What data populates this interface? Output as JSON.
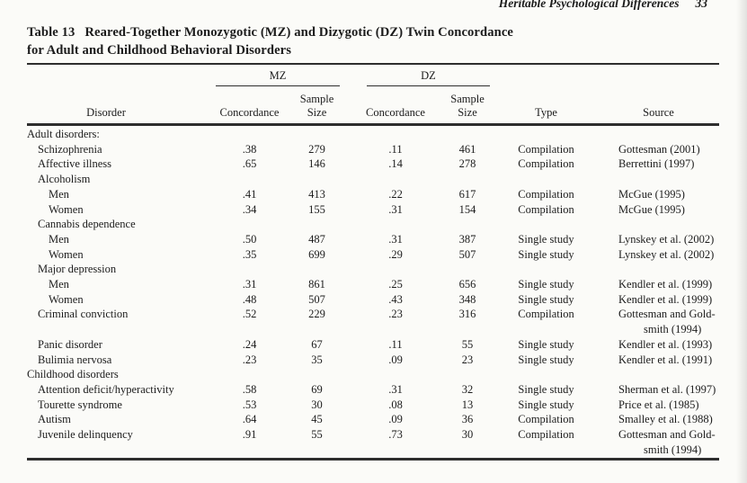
{
  "page": {
    "running_head": "Heritable Psychological Differences",
    "page_number": "33"
  },
  "colors": {
    "ink": "#1c1c1c",
    "paper": "#fbfbf8",
    "rule": "#2e2e2e"
  },
  "table": {
    "label": "Table 13",
    "title_line1": "Reared-Together Monozygotic (MZ) and Dizygotic (DZ) Twin Concordance",
    "title_line2": "for Adult and Childhood Behavioral Disorders",
    "spanners": {
      "mz": "MZ",
      "dz": "DZ"
    },
    "headers": {
      "disorder": "Disorder",
      "concordance": "Concordance",
      "sample_size": "Sample\nSize",
      "type": "Type",
      "source": "Source"
    },
    "rows": [
      {
        "indent": 0,
        "disorder": "Adult disorders:",
        "mz_concordance": "",
        "mz_sample": "",
        "dz_concordance": "",
        "dz_sample": "",
        "type": "",
        "source": []
      },
      {
        "indent": 1,
        "disorder": "Schizophrenia",
        "mz_concordance": ".38",
        "mz_sample": "279",
        "dz_concordance": ".11",
        "dz_sample": "461",
        "type": "Compilation",
        "source": [
          "Gottesman (2001)"
        ]
      },
      {
        "indent": 1,
        "disorder": "Affective illness",
        "mz_concordance": ".65",
        "mz_sample": "146",
        "dz_concordance": ".14",
        "dz_sample": "278",
        "type": "Compilation",
        "source": [
          "Berrettini (1997)"
        ]
      },
      {
        "indent": 1,
        "disorder": "Alcoholism",
        "mz_concordance": "",
        "mz_sample": "",
        "dz_concordance": "",
        "dz_sample": "",
        "type": "",
        "source": []
      },
      {
        "indent": 2,
        "disorder": "Men",
        "mz_concordance": ".41",
        "mz_sample": "413",
        "dz_concordance": ".22",
        "dz_sample": "617",
        "type": "Compilation",
        "source": [
          "McGue (1995)"
        ]
      },
      {
        "indent": 2,
        "disorder": "Women",
        "mz_concordance": ".34",
        "mz_sample": "155",
        "dz_concordance": ".31",
        "dz_sample": "154",
        "type": "Compilation",
        "source": [
          "McGue (1995)"
        ]
      },
      {
        "indent": 1,
        "disorder": "Cannabis dependence",
        "mz_concordance": "",
        "mz_sample": "",
        "dz_concordance": "",
        "dz_sample": "",
        "type": "",
        "source": []
      },
      {
        "indent": 2,
        "disorder": "Men",
        "mz_concordance": ".50",
        "mz_sample": "487",
        "dz_concordance": ".31",
        "dz_sample": "387",
        "type": "Single study",
        "source": [
          "Lynskey et al. (2002)"
        ]
      },
      {
        "indent": 2,
        "disorder": "Women",
        "mz_concordance": ".35",
        "mz_sample": "699",
        "dz_concordance": ".29",
        "dz_sample": "507",
        "type": "Single study",
        "source": [
          "Lynskey et al. (2002)"
        ]
      },
      {
        "indent": 1,
        "disorder": "Major depression",
        "mz_concordance": "",
        "mz_sample": "",
        "dz_concordance": "",
        "dz_sample": "",
        "type": "",
        "source": []
      },
      {
        "indent": 2,
        "disorder": "Men",
        "mz_concordance": ".31",
        "mz_sample": "861",
        "dz_concordance": ".25",
        "dz_sample": "656",
        "type": "Single study",
        "source": [
          "Kendler et al. (1999)"
        ]
      },
      {
        "indent": 2,
        "disorder": "Women",
        "mz_concordance": ".48",
        "mz_sample": "507",
        "dz_concordance": ".43",
        "dz_sample": "348",
        "type": "Single study",
        "source": [
          "Kendler et al. (1999)"
        ]
      },
      {
        "indent": 1,
        "disorder": "Criminal conviction",
        "mz_concordance": ".52",
        "mz_sample": "229",
        "dz_concordance": ".23",
        "dz_sample": "316",
        "type": "Compilation",
        "source": [
          "Gottesman and Gold-",
          "smith (1994)"
        ]
      },
      {
        "indent": 1,
        "disorder": "Panic disorder",
        "mz_concordance": ".24",
        "mz_sample": "67",
        "dz_concordance": ".11",
        "dz_sample": "55",
        "type": "Single study",
        "source": [
          "Kendler et al. (1993)"
        ]
      },
      {
        "indent": 1,
        "disorder": "Bulimia nervosa",
        "mz_concordance": ".23",
        "mz_sample": "35",
        "dz_concordance": ".09",
        "dz_sample": "23",
        "type": "Single study",
        "source": [
          "Kendler et al. (1991)"
        ]
      },
      {
        "indent": 0,
        "disorder": "Childhood disorders",
        "mz_concordance": "",
        "mz_sample": "",
        "dz_concordance": "",
        "dz_sample": "",
        "type": "",
        "source": []
      },
      {
        "indent": 1,
        "disorder": "Attention deficit/hyperactivity",
        "mz_concordance": ".58",
        "mz_sample": "69",
        "dz_concordance": ".31",
        "dz_sample": "32",
        "type": "Single study",
        "source": [
          "Sherman et al. (1997)"
        ]
      },
      {
        "indent": 1,
        "disorder": "Tourette syndrome",
        "mz_concordance": ".53",
        "mz_sample": "30",
        "dz_concordance": ".08",
        "dz_sample": "13",
        "type": "Single study",
        "source": [
          "Price et al. (1985)"
        ]
      },
      {
        "indent": 1,
        "disorder": "Autism",
        "mz_concordance": ".64",
        "mz_sample": "45",
        "dz_concordance": ".09",
        "dz_sample": "36",
        "type": "Compilation",
        "source": [
          "Smalley et al. (1988)"
        ]
      },
      {
        "indent": 1,
        "disorder": "Juvenile delinquency",
        "mz_concordance": ".91",
        "mz_sample": "55",
        "dz_concordance": ".73",
        "dz_sample": "30",
        "type": "Compilation",
        "source": [
          "Gottesman and Gold-",
          "smith (1994)"
        ]
      }
    ]
  }
}
